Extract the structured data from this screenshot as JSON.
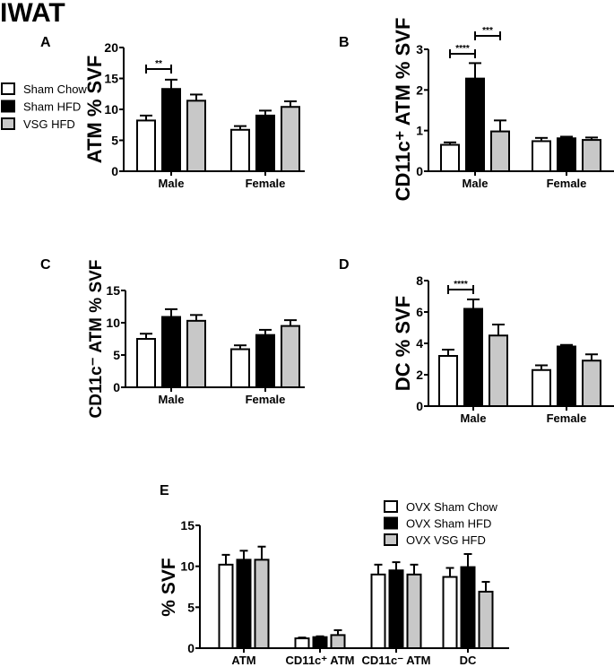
{
  "figure_title": "IWAT",
  "colors": {
    "sham_chow": "#ffffff",
    "sham_hfd": "#000000",
    "vsg_hfd": "#c8c8c8",
    "outline": "#000000"
  },
  "legend_top": [
    "Sham Chow",
    "Sham HFD",
    "VSG HFD"
  ],
  "legend_e": [
    "OVX Sham Chow",
    "OVX Sham HFD",
    "OVX VSG HFD"
  ],
  "chart_data": [
    {
      "panel": "A",
      "type": "bar",
      "ylabel": "ATM % SVF",
      "ylim": [
        0,
        20
      ],
      "yticks": [
        0,
        5,
        10,
        15,
        20
      ],
      "categories": [
        "Male",
        "Female"
      ],
      "series": [
        {
          "name": "Sham Chow",
          "values": [
            8.2,
            6.7
          ],
          "errors": [
            0.8,
            0.6
          ]
        },
        {
          "name": "Sham HFD",
          "values": [
            13.3,
            9.0
          ],
          "errors": [
            1.5,
            0.8
          ]
        },
        {
          "name": "VSG HFD",
          "values": [
            11.4,
            10.4
          ],
          "errors": [
            1.0,
            0.9
          ]
        }
      ],
      "significance": [
        {
          "category": "Male",
          "from": 0,
          "to": 1,
          "label": "**"
        }
      ]
    },
    {
      "panel": "B",
      "type": "bar",
      "ylabel": "CD11c⁺ ATM % SVF",
      "ylim": [
        0,
        3
      ],
      "yticks": [
        0,
        1,
        2,
        3
      ],
      "categories": [
        "Male",
        "Female"
      ],
      "series": [
        {
          "name": "Sham Chow",
          "values": [
            0.65,
            0.74
          ],
          "errors": [
            0.06,
            0.08
          ]
        },
        {
          "name": "Sham HFD",
          "values": [
            2.28,
            0.81
          ],
          "errors": [
            0.38,
            0.04
          ]
        },
        {
          "name": "VSG HFD",
          "values": [
            0.98,
            0.77
          ],
          "errors": [
            0.27,
            0.06
          ]
        }
      ],
      "significance": [
        {
          "category": "Male",
          "from": 0,
          "to": 1,
          "label": "****"
        },
        {
          "category": "Male",
          "from": 1,
          "to": 2,
          "label": "***"
        }
      ]
    },
    {
      "panel": "C",
      "type": "bar",
      "ylabel": "CD11c⁻ ATM % SVF",
      "ylim": [
        0,
        15
      ],
      "yticks": [
        0,
        5,
        10,
        15
      ],
      "categories": [
        "Male",
        "Female"
      ],
      "series": [
        {
          "name": "Sham Chow",
          "values": [
            7.5,
            5.9
          ],
          "errors": [
            0.8,
            0.6
          ]
        },
        {
          "name": "Sham HFD",
          "values": [
            10.9,
            8.1
          ],
          "errors": [
            1.2,
            0.8
          ]
        },
        {
          "name": "VSG HFD",
          "values": [
            10.3,
            9.5
          ],
          "errors": [
            0.9,
            0.9
          ]
        }
      ],
      "significance": []
    },
    {
      "panel": "D",
      "type": "bar",
      "ylabel": "DC % SVF",
      "ylim": [
        0,
        8
      ],
      "yticks": [
        0,
        2,
        4,
        6,
        8
      ],
      "categories": [
        "Male",
        "Female"
      ],
      "series": [
        {
          "name": "Sham Chow",
          "values": [
            3.2,
            2.3
          ],
          "errors": [
            0.4,
            0.3
          ]
        },
        {
          "name": "Sham HFD",
          "values": [
            6.2,
            3.8
          ],
          "errors": [
            0.6,
            0.1
          ]
        },
        {
          "name": "VSG HFD",
          "values": [
            4.5,
            2.9
          ],
          "errors": [
            0.7,
            0.4
          ]
        }
      ],
      "significance": [
        {
          "category": "Male",
          "from": 0,
          "to": 1,
          "label": "****"
        }
      ]
    },
    {
      "panel": "E",
      "type": "bar",
      "ylabel": "% SVF",
      "ylim": [
        0,
        15
      ],
      "yticks": [
        0,
        5,
        10,
        15
      ],
      "categories": [
        "ATM",
        "CD11c⁺ ATM",
        "CD11c⁻ ATM",
        "DC"
      ],
      "series": [
        {
          "name": "OVX Sham Chow",
          "values": [
            10.2,
            1.2,
            9.0,
            8.7
          ],
          "errors": [
            1.2,
            0.1,
            1.2,
            1.1
          ]
        },
        {
          "name": "OVX Sham HFD",
          "values": [
            10.8,
            1.35,
            9.5,
            9.9
          ],
          "errors": [
            1.1,
            0.1,
            1.0,
            1.6
          ]
        },
        {
          "name": "OVX VSG HFD",
          "values": [
            10.8,
            1.6,
            9.0,
            6.9
          ],
          "errors": [
            1.6,
            0.6,
            1.2,
            1.2
          ]
        }
      ],
      "significance": []
    }
  ]
}
